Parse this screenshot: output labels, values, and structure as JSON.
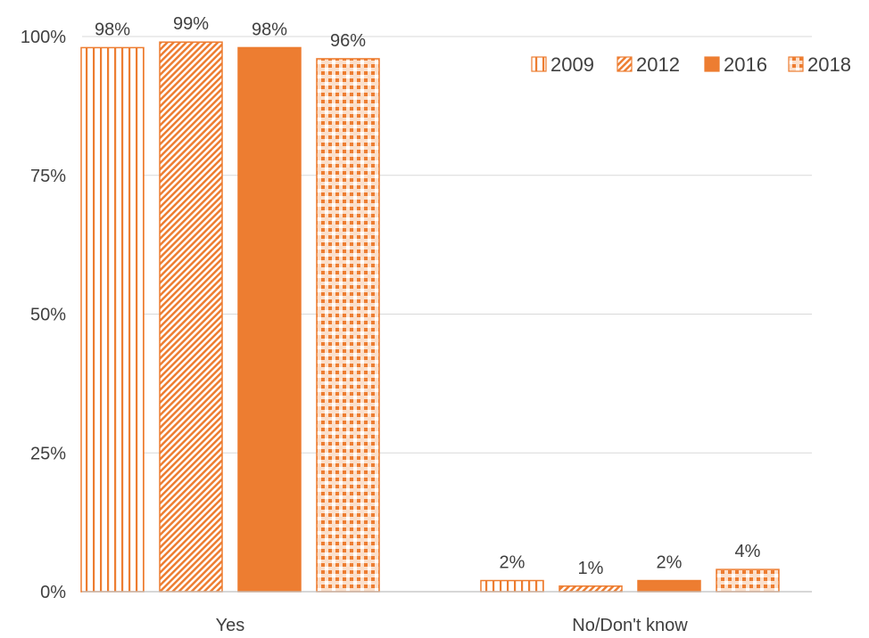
{
  "chart_data": {
    "type": "bar",
    "title": "",
    "xlabel": "",
    "ylabel": "",
    "ylim": [
      0,
      100
    ],
    "yticks": [
      0,
      25,
      50,
      75,
      100
    ],
    "ytick_suffix": "%",
    "categories": [
      "Yes",
      "No/Don't know"
    ],
    "series": [
      {
        "name": "2009",
        "values": [
          98,
          2
        ],
        "labels": [
          "98%",
          "2%"
        ],
        "pattern": "vertical-stripes"
      },
      {
        "name": "2012",
        "values": [
          99,
          1
        ],
        "labels": [
          "99%",
          "1%"
        ],
        "pattern": "diagonal-hatch"
      },
      {
        "name": "2016",
        "values": [
          98,
          2
        ],
        "labels": [
          "98%",
          "2%"
        ],
        "pattern": "solid"
      },
      {
        "name": "2018",
        "values": [
          96,
          4
        ],
        "labels": [
          "96%",
          "4%"
        ],
        "pattern": "checker"
      }
    ],
    "color": "#ED7D31",
    "legend_position": "top-right",
    "grid": true
  }
}
